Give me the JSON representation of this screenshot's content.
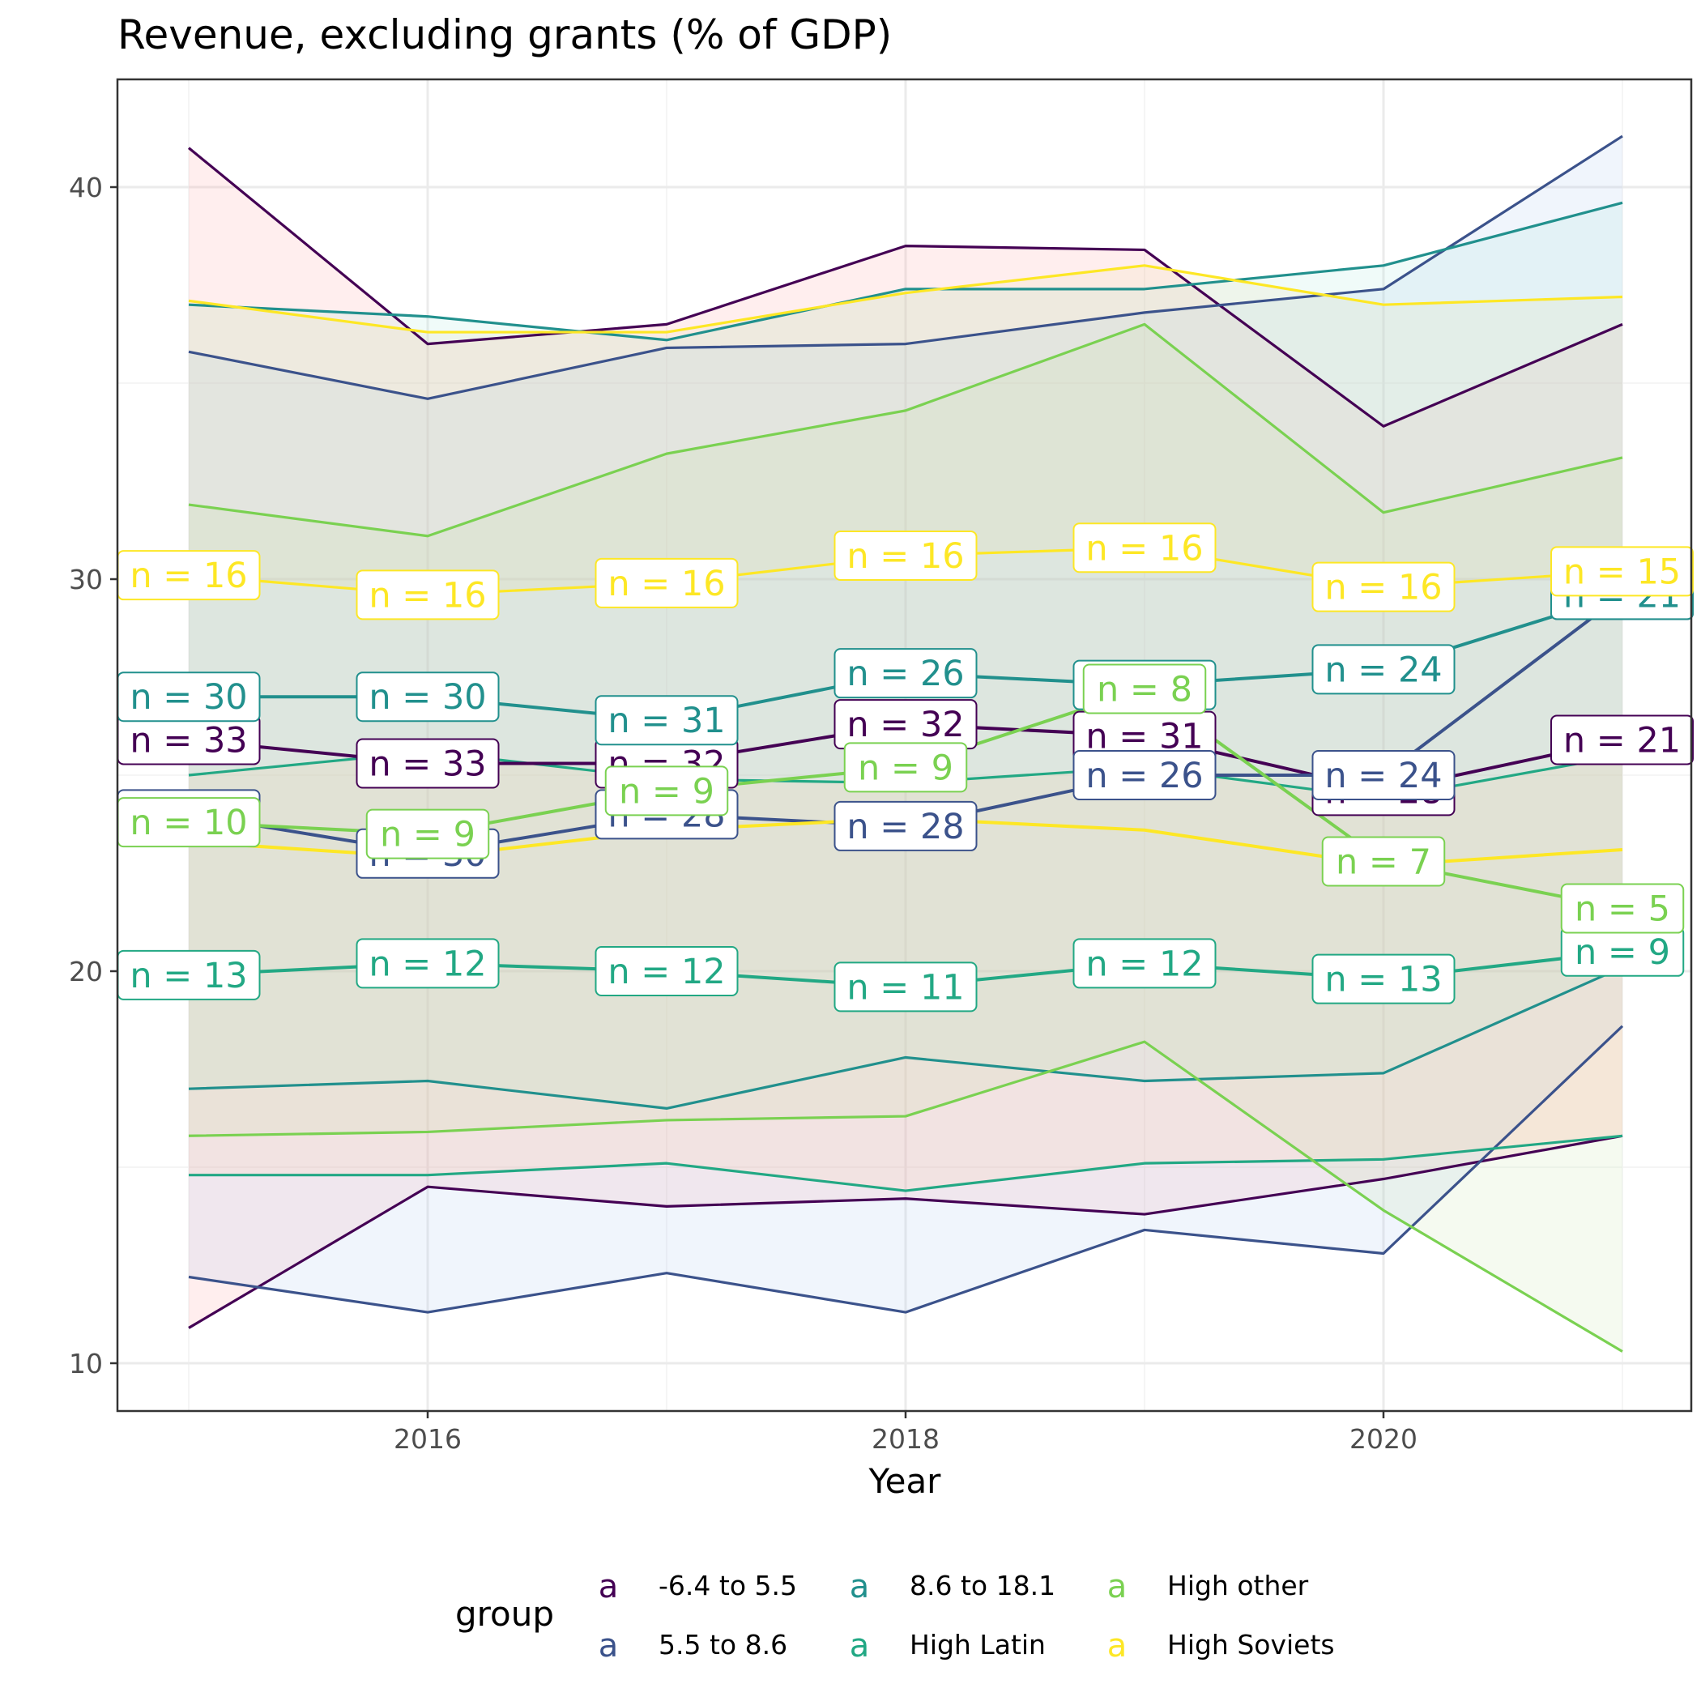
{
  "chart_data": {
    "type": "line",
    "title": "Revenue, excluding grants (% of GDP)",
    "xlabel": "Year",
    "ylabel": "",
    "x": [
      2015,
      2016,
      2017,
      2018,
      2019,
      2020,
      2021
    ],
    "x_ticks": [
      2016,
      2018,
      2020
    ],
    "y_ticks": [
      10,
      20,
      30,
      40
    ],
    "xlim": [
      2014.7,
      2021.3
    ],
    "ylim": [
      9.0,
      42.7
    ],
    "grid": true,
    "legend": {
      "title": "group",
      "position": "bottom",
      "key_glyph": "a",
      "entries": [
        "-6.4 to 5.5",
        "5.5 to 8.6",
        "8.6 to 18.1",
        "High Latin",
        "High other",
        "High Soviets"
      ]
    },
    "series": [
      {
        "name": "-6.4 to 5.5",
        "color": "#440154",
        "fill": "#ff9a9a",
        "upper": [
          41.0,
          36.0,
          36.5,
          38.5,
          38.4,
          33.9,
          36.5
        ],
        "median": [
          25.9,
          25.3,
          25.3,
          26.3,
          26.0,
          24.6,
          25.9
        ],
        "lower": [
          10.9,
          14.5,
          14.0,
          14.2,
          13.8,
          14.7,
          15.8
        ],
        "n": [
          "n = 33",
          "n = 33",
          "n = 32",
          "n = 32",
          "n = 31",
          "n = 28",
          "n = 21"
        ]
      },
      {
        "name": "5.5 to 8.6",
        "color": "#3b528b",
        "fill": "#a6c4ee",
        "upper": [
          35.8,
          34.6,
          35.9,
          36.0,
          36.8,
          37.4,
          41.3
        ],
        "median": [
          24.0,
          23.0,
          24.0,
          23.7,
          25.0,
          25.0,
          29.6
        ],
        "lower": [
          12.2,
          11.3,
          12.3,
          11.3,
          13.4,
          12.8,
          18.6
        ],
        "n": [
          "n = 30",
          "n = 30",
          "n = 28",
          "n = 28",
          "n = 26",
          "n = 24",
          "n = 21"
        ]
      },
      {
        "name": "8.6 to 18.1",
        "color": "#21908d",
        "fill": "#a6e6d9",
        "upper": [
          37.0,
          36.7,
          36.1,
          37.4,
          37.4,
          38.0,
          39.6
        ],
        "median": [
          27.0,
          27.0,
          26.4,
          27.6,
          27.3,
          27.7,
          29.6
        ],
        "lower": [
          17.0,
          17.2,
          16.5,
          17.8,
          17.2,
          17.4,
          20.1
        ],
        "n": [
          "n = 30",
          "n = 30",
          "n = 31",
          "n = 26",
          "n = 26",
          "n = 24",
          "n = 21"
        ]
      },
      {
        "name": "High Latin",
        "color": "#22a884",
        "fill": "#ffd0a6",
        "upper": [
          25.0,
          25.6,
          24.9,
          24.8,
          25.2,
          24.4,
          25.5
        ],
        "median": [
          19.9,
          20.2,
          20.0,
          19.6,
          20.2,
          19.8,
          20.5
        ],
        "lower": [
          14.8,
          14.8,
          15.1,
          14.4,
          15.1,
          15.2,
          15.8
        ],
        "n": [
          "n = 13",
          "n = 12",
          "n = 12",
          "n = 11",
          "n = 12",
          "n = 13",
          "n = 9"
        ]
      },
      {
        "name": "High other",
        "color": "#7ad151",
        "fill": "#c6e4a6",
        "upper": [
          31.9,
          31.1,
          33.2,
          34.3,
          36.5,
          31.7,
          33.1
        ],
        "median": [
          23.8,
          23.5,
          24.6,
          25.2,
          27.2,
          22.8,
          21.6
        ],
        "lower": [
          15.8,
          15.9,
          16.2,
          16.3,
          18.2,
          13.9,
          10.3
        ],
        "n": [
          "n = 10",
          "n = 9",
          "n = 9",
          "n = 9",
          "n = 8",
          "n = 7",
          "n = 5"
        ]
      },
      {
        "name": "High Soviets",
        "color": "#fde725",
        "fill": "#e6dea6",
        "upper": [
          37.1,
          36.3,
          36.3,
          37.3,
          38.0,
          37.0,
          37.2
        ],
        "median": [
          23.3,
          22.9,
          23.6,
          23.9,
          23.6,
          22.7,
          23.1
        ],
        "lower": [
          30.1,
          29.6,
          29.9,
          30.6,
          30.8,
          29.8,
          30.2
        ],
        "n": [
          "n = 16",
          "n = 16",
          "n = 16",
          "n = 16",
          "n = 16",
          "n = 16",
          "n = 15"
        ],
        "note": ""
      }
    ]
  }
}
